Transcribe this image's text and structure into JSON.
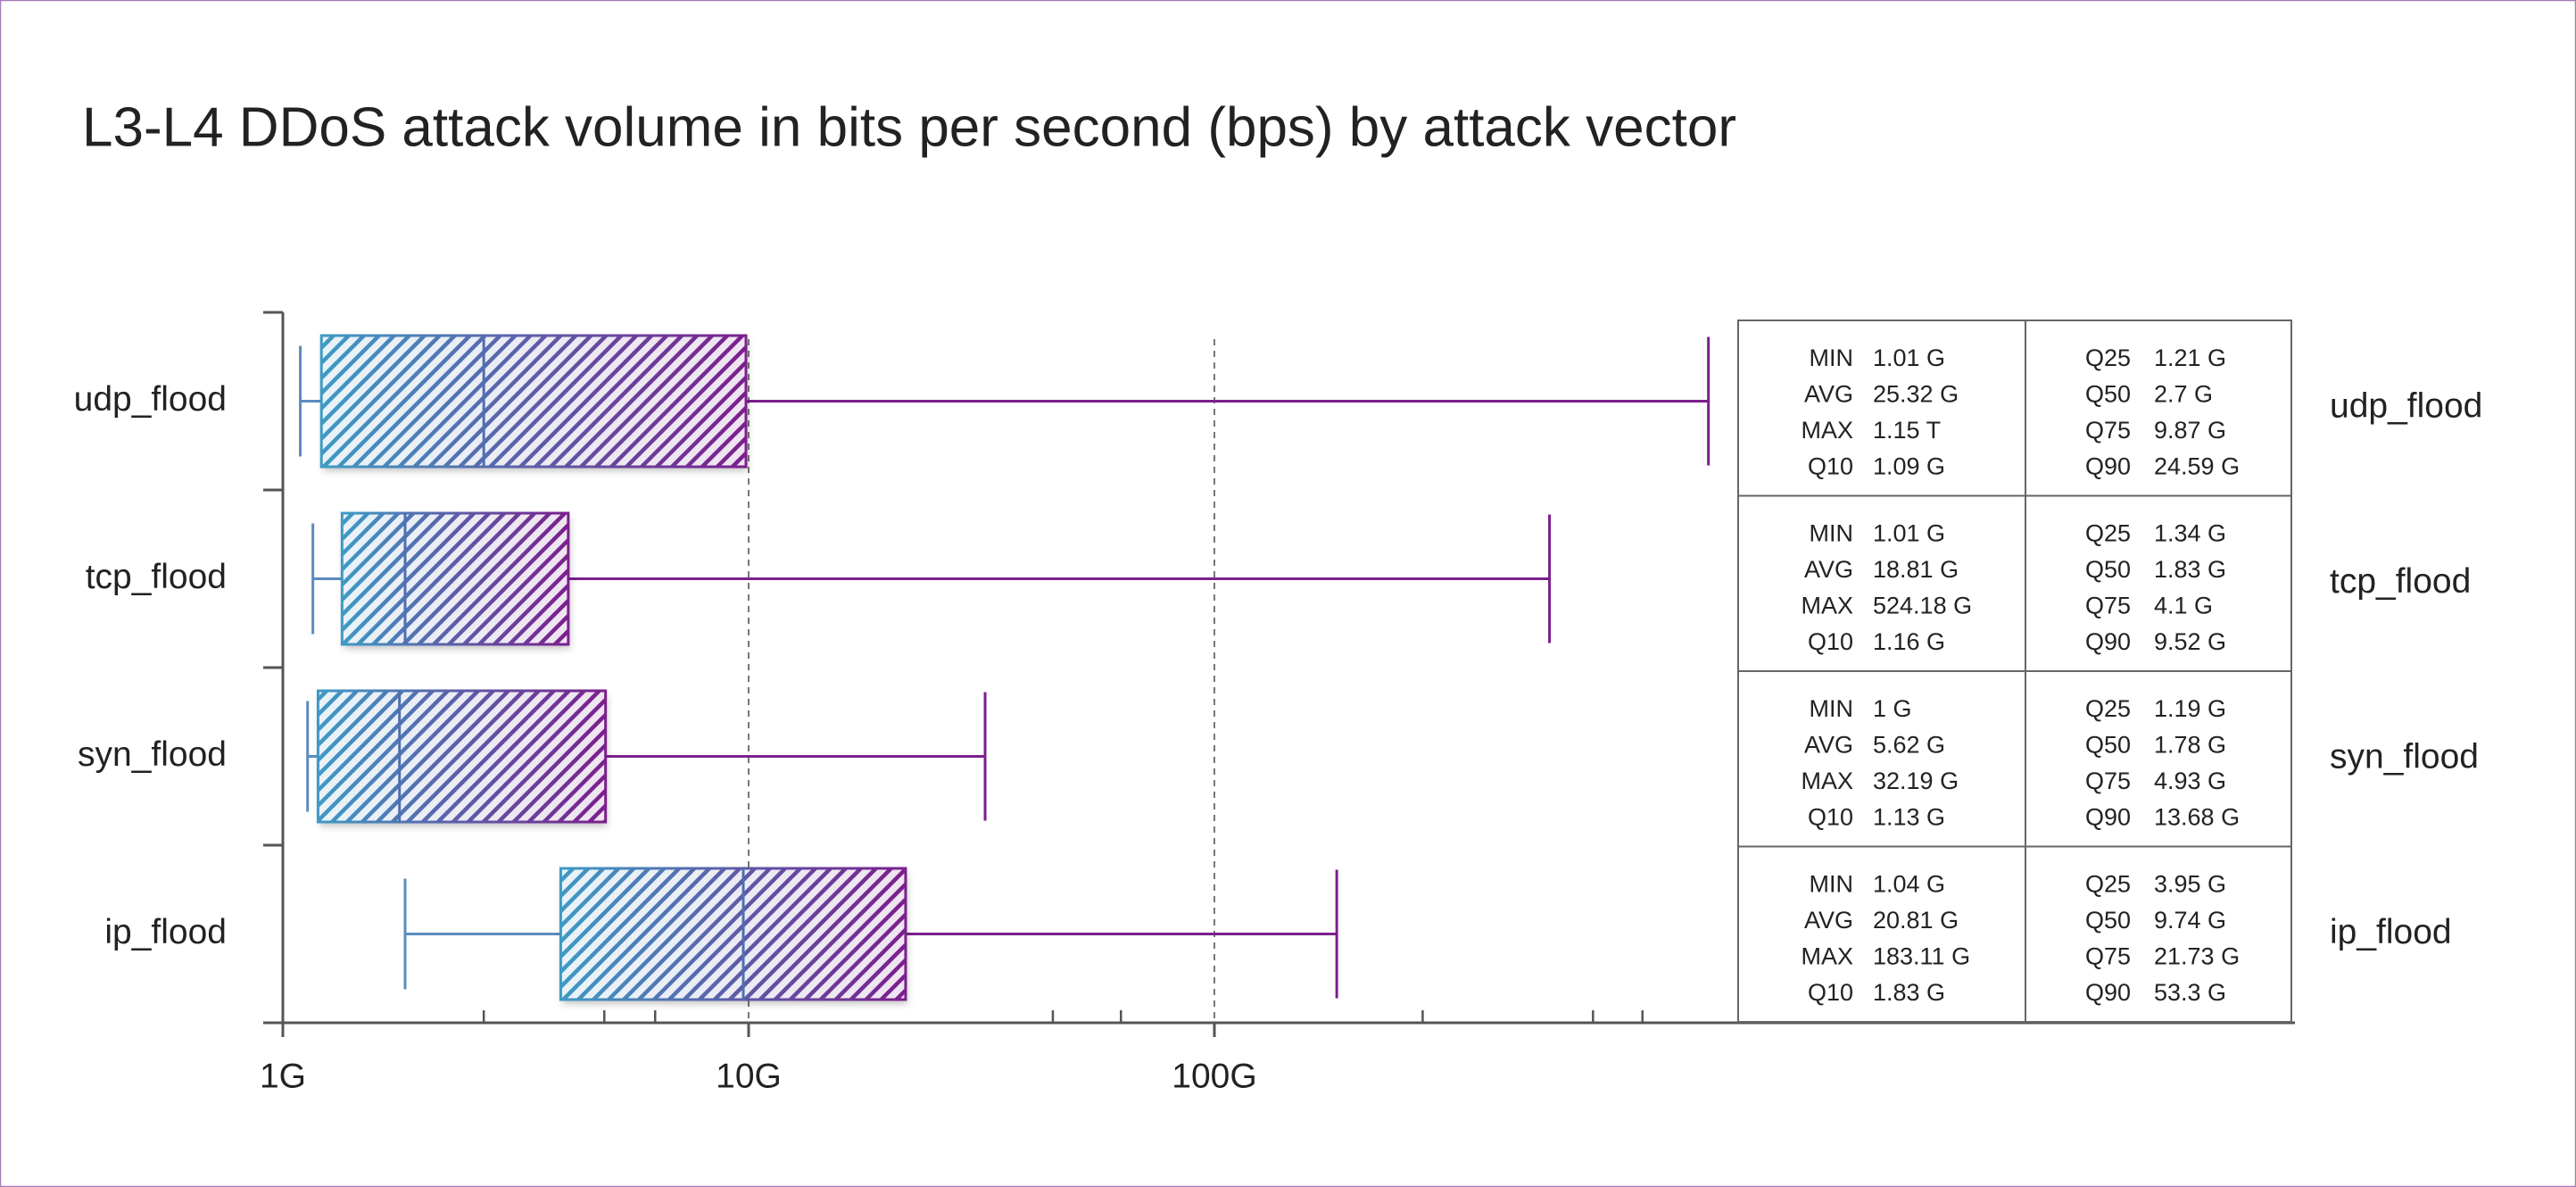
{
  "chart_data": {
    "type": "box",
    "title": "L3-L4 DDoS attack volume in bits per second (bps) by attack vector",
    "categories": [
      "udp_flood",
      "tcp_flood",
      "syn_flood",
      "ip_flood"
    ],
    "stat_names": [
      "MIN",
      "AVG",
      "MAX",
      "Q10",
      "Q25",
      "Q50",
      "Q75",
      "Q90"
    ],
    "stats": [
      [
        1.01,
        25.32,
        1150,
        1.09,
        1.21,
        2.7,
        9.87,
        24.59
      ],
      [
        1.01,
        18.81,
        524.18,
        1.16,
        1.34,
        1.83,
        4.1,
        9.52
      ],
      [
        1,
        5.62,
        32.19,
        1.13,
        1.19,
        1.78,
        4.93,
        13.68
      ],
      [
        1.04,
        20.81,
        183.11,
        1.83,
        3.95,
        9.74,
        21.73,
        53.3
      ]
    ],
    "stat_labels": [
      [
        "1.01 G",
        "25.32 G",
        "1.15 T",
        "1.09 G",
        "1.21 G",
        "2.7 G",
        "9.87 G",
        "24.59 G"
      ],
      [
        "1.01 G",
        "18.81 G",
        "524.18 G",
        "1.16 G",
        "1.34 G",
        "1.83 G",
        "4.1 G",
        "9.52 G"
      ],
      [
        "1 G",
        "5.62 G",
        "32.19 G",
        "1.13 G",
        "1.19 G",
        "1.78 G",
        "4.93 G",
        "13.68 G"
      ],
      [
        "1.04 G",
        "20.81 G",
        "183.11 G",
        "1.83 G",
        "3.95 G",
        "9.74 G",
        "21.73 G",
        "53.3 G"
      ]
    ],
    "xscale": "log",
    "xlim": [
      1,
      1000
    ],
    "xticks": [
      {
        "value": 1,
        "label": "1G"
      },
      {
        "value": 10,
        "label": "10G"
      },
      {
        "value": 100,
        "label": "100G"
      }
    ],
    "xminorticks": [
      2.7,
      4.9,
      6.3,
      45,
      63,
      280,
      650,
      830
    ],
    "grid": true,
    "colors": {
      "start": "#3f9ac4",
      "end": "#7b1f8c"
    }
  }
}
